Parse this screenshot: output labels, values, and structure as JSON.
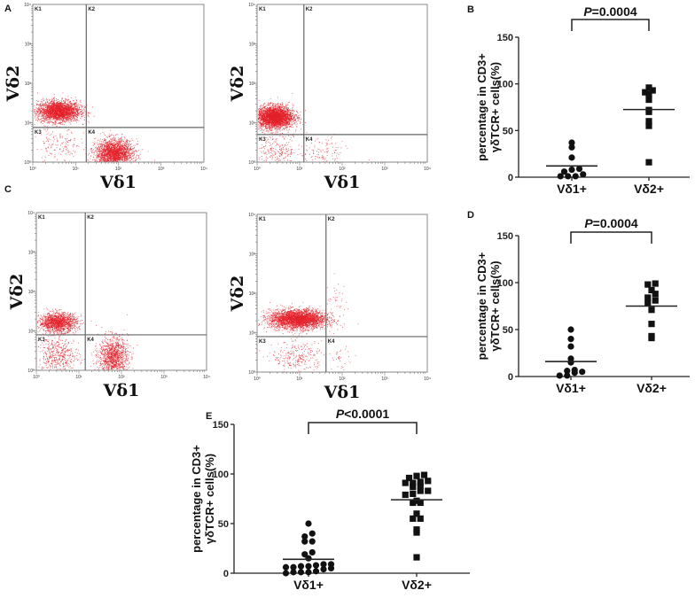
{
  "panel_labels": [
    "A",
    "B",
    "C",
    "D",
    "E"
  ],
  "chart_data": [
    {
      "id": "A-left",
      "type": "scatter",
      "panel": "A",
      "xlabel": "Vδ1",
      "ylabel": "Vδ2",
      "scale": "log10",
      "xlim_log": [
        0,
        4
      ],
      "ylim_log": [
        0,
        4
      ],
      "tick_labels": [
        "10⁰",
        "10¹",
        "10²",
        "10³",
        "10⁴"
      ],
      "quadrants": [
        "K1",
        "K2",
        "K3",
        "K4"
      ],
      "gate_log": {
        "x": 1.25,
        "y": 0.88
      },
      "color": "#e3202a",
      "clusters": [
        {
          "cx": 0.6,
          "cy": 1.3,
          "sx": 0.25,
          "sy": 0.13,
          "n": 2600
        },
        {
          "cx": 1.9,
          "cy": 0.22,
          "sx": 0.22,
          "sy": 0.18,
          "n": 2200
        },
        {
          "cx": 0.6,
          "cy": 0.4,
          "sx": 0.3,
          "sy": 0.25,
          "n": 160
        }
      ]
    },
    {
      "id": "A-right",
      "type": "scatter",
      "panel": "A",
      "xlabel": "Vδ1",
      "ylabel": "Vδ2",
      "scale": "log10",
      "xlim_log": [
        0,
        4
      ],
      "ylim_log": [
        0,
        4
      ],
      "tick_labels": [
        "10⁰",
        "10¹",
        "10²",
        "10³",
        "10⁴"
      ],
      "quadrants": [
        "K1",
        "K2",
        "K3",
        "K4"
      ],
      "gate_log": {
        "x": 1.1,
        "y": 0.7
      },
      "color": "#e3202a",
      "clusters": [
        {
          "cx": 0.4,
          "cy": 1.15,
          "sx": 0.22,
          "sy": 0.14,
          "n": 3200
        },
        {
          "cx": 0.45,
          "cy": 0.3,
          "sx": 0.3,
          "sy": 0.22,
          "n": 260
        },
        {
          "cx": 1.55,
          "cy": 0.25,
          "sx": 0.25,
          "sy": 0.2,
          "n": 110
        }
      ]
    },
    {
      "id": "C-left",
      "type": "scatter",
      "panel": "C",
      "xlabel": "Vδ1",
      "ylabel": "Vδ2",
      "scale": "log10",
      "xlim_log": [
        0,
        4
      ],
      "ylim_log": [
        0,
        4
      ],
      "tick_labels": [
        "10⁰",
        "10¹",
        "10²",
        "10³",
        "10⁴"
      ],
      "quadrants": [
        "K1",
        "K2",
        "K3",
        "K4"
      ],
      "gate_log": {
        "x": 1.15,
        "y": 0.9
      },
      "color": "#e3202a",
      "clusters": [
        {
          "cx": 0.5,
          "cy": 1.22,
          "sx": 0.22,
          "sy": 0.12,
          "n": 1500
        },
        {
          "cx": 0.5,
          "cy": 0.35,
          "sx": 0.25,
          "sy": 0.25,
          "n": 500
        },
        {
          "cx": 1.8,
          "cy": 0.35,
          "sx": 0.17,
          "sy": 0.25,
          "n": 1200
        }
      ]
    },
    {
      "id": "C-right",
      "type": "scatter",
      "panel": "C",
      "xlabel": "Vδ1",
      "ylabel": "Vδ2",
      "scale": "log10",
      "xlim_log": [
        0,
        4
      ],
      "ylim_log": [
        0,
        4
      ],
      "tick_labels": [
        "10⁰",
        "10¹",
        "10²",
        "10³",
        "10⁴"
      ],
      "quadrants": [
        "K1",
        "K2",
        "K3",
        "K4"
      ],
      "gate_log": {
        "x": 1.62,
        "y": 0.9
      },
      "color": "#e3202a",
      "clusters": [
        {
          "cx": 0.95,
          "cy": 1.35,
          "sx": 0.33,
          "sy": 0.12,
          "n": 3200
        },
        {
          "cx": 0.95,
          "cy": 0.38,
          "sx": 0.3,
          "sy": 0.2,
          "n": 260
        },
        {
          "cx": 1.95,
          "cy": 0.38,
          "sx": 0.1,
          "sy": 0.15,
          "n": 30
        },
        {
          "cx": 1.85,
          "cy": 1.8,
          "sx": 0.15,
          "sy": 0.25,
          "n": 35
        }
      ]
    },
    {
      "id": "B",
      "type": "scatter",
      "panel": "B",
      "ylabel": [
        "percentage in CD3+",
        "γδTCR+ cells(%)"
      ],
      "ylim": [
        0,
        150
      ],
      "yticks": [
        "0",
        "50",
        "100",
        "150"
      ],
      "categories": [
        "Vδ1+",
        "Vδ2+"
      ],
      "p_value": "=0.0004",
      "p_letter": "P",
      "series": [
        {
          "name": "Vδ1+",
          "marker": "circle",
          "values": [
            37,
            32,
            21,
            9,
            6,
            1,
            1,
            1,
            3,
            8
          ],
          "mean": 12
        },
        {
          "name": "Vδ2+",
          "marker": "square",
          "values": [
            96,
            93,
            91,
            89,
            83,
            72,
            70,
            60,
            55,
            16
          ],
          "mean": 72.5
        }
      ]
    },
    {
      "id": "D",
      "type": "scatter",
      "panel": "D",
      "ylabel": [
        "percentage in CD3+",
        "γδTCR+ cells(%)"
      ],
      "ylim": [
        0,
        150
      ],
      "yticks": [
        "0",
        "50",
        "100",
        "150"
      ],
      "categories": [
        "Vδ1+",
        "Vδ2+"
      ],
      "p_value": "=0.0004",
      "p_letter": "P",
      "series": [
        {
          "name": "Vδ1+",
          "marker": "circle",
          "values": [
            50,
            40,
            32,
            19,
            15,
            7,
            6,
            5,
            4,
            1,
            1
          ],
          "mean": 16
        },
        {
          "name": "Vδ2+",
          "marker": "square",
          "values": [
            99,
            98,
            92,
            88,
            84,
            81,
            78,
            71,
            56,
            43,
            41
          ],
          "mean": 75
        }
      ]
    },
    {
      "id": "E",
      "type": "scatter",
      "panel": "E",
      "ylabel": [
        "percentage in CD3+",
        "γδTCR+ cells(%)"
      ],
      "ylim": [
        0,
        150
      ],
      "yticks": [
        "0",
        "50",
        "100",
        "150"
      ],
      "categories": [
        "Vδ1+",
        "Vδ2+"
      ],
      "p_value": "<0.0001",
      "p_letter": "P",
      "series": [
        {
          "name": "Vδ1+",
          "marker": "circle",
          "values": [
            50,
            40,
            37,
            32,
            32,
            21,
            19,
            15,
            9,
            9,
            8,
            7,
            7,
            6,
            6,
            5,
            4,
            2,
            1,
            1,
            1,
            0
          ],
          "mean": 14
        },
        {
          "name": "Vδ2+",
          "marker": "square",
          "values": [
            99,
            98,
            96,
            93,
            92,
            91,
            91,
            88,
            87,
            83,
            83,
            80,
            79,
            73,
            71,
            71,
            60,
            55,
            55,
            44,
            41,
            16
          ],
          "mean": 74
        }
      ]
    }
  ]
}
